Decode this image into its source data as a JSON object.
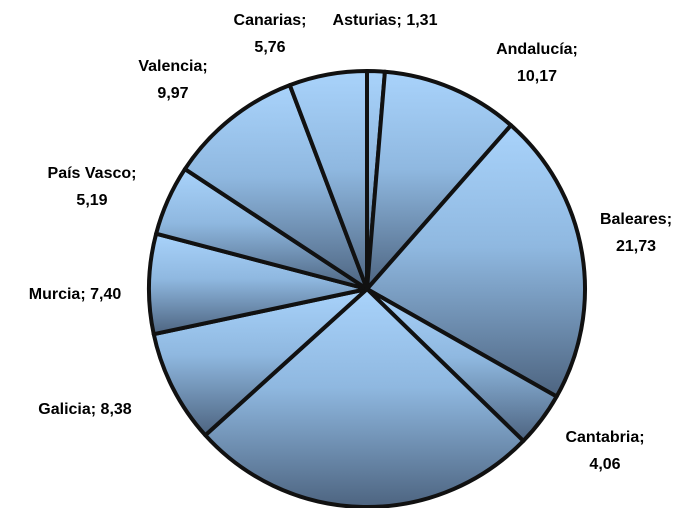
{
  "chart_data": {
    "type": "pie",
    "categories": [
      "Asturias",
      "Andalucía",
      "Baleares",
      "Cantabria",
      null,
      "Galicia",
      "Murcia",
      "País Vasco",
      "Valencia",
      "Canarias"
    ],
    "values": [
      1.31,
      10.17,
      21.73,
      4.06,
      26.03,
      8.38,
      7.4,
      5.19,
      9.97,
      5.76
    ],
    "value_labels": [
      "Asturias; 1,31",
      "Andalucía; 10,17",
      "Baleares; 21,73",
      "Cantabria; 4,06",
      null,
      "Galicia; 8,38",
      "Murcia; 7,40",
      "País Vasco; 5,19",
      "Valencia; 9,97",
      "Canarias; 5,76"
    ],
    "color": "#9ec9f2"
  }
}
